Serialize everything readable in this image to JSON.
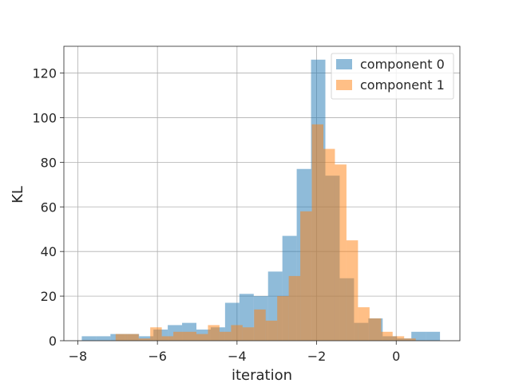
{
  "chart_data": {
    "type": "bar",
    "subtype": "overlapping-histogram",
    "title": "",
    "xlabel": "iteration",
    "ylabel": "KL",
    "xlim": [
      -8.35,
      1.6
    ],
    "ylim": [
      0,
      132
    ],
    "xticks": [
      -8,
      -6,
      -4,
      -2,
      0
    ],
    "xtick_labels": [
      "−8",
      "−6",
      "−4",
      "−2",
      "0"
    ],
    "yticks": [
      0,
      20,
      40,
      60,
      80,
      100,
      120
    ],
    "grid": true,
    "legend_position": "top-right",
    "series": [
      {
        "name": "component 0",
        "color": "#1f77b4",
        "opacity": 0.5,
        "bin_start": -7.9,
        "bin_width": 0.36,
        "values": [
          2,
          2,
          3,
          3,
          2,
          5,
          7,
          8,
          5,
          6,
          17,
          21,
          20,
          31,
          47,
          77,
          126,
          74,
          28,
          8,
          10,
          2,
          1,
          4,
          4
        ]
      },
      {
        "name": "component 1",
        "color": "#ff7f0e",
        "opacity": 0.5,
        "bin_start": -7.05,
        "bin_width": 0.29,
        "values": [
          3,
          3,
          1,
          6,
          2,
          4,
          4,
          3,
          7,
          4,
          7,
          6,
          14,
          9,
          20,
          29,
          58,
          97,
          86,
          79,
          45,
          15,
          10,
          4,
          2,
          1
        ]
      }
    ]
  }
}
